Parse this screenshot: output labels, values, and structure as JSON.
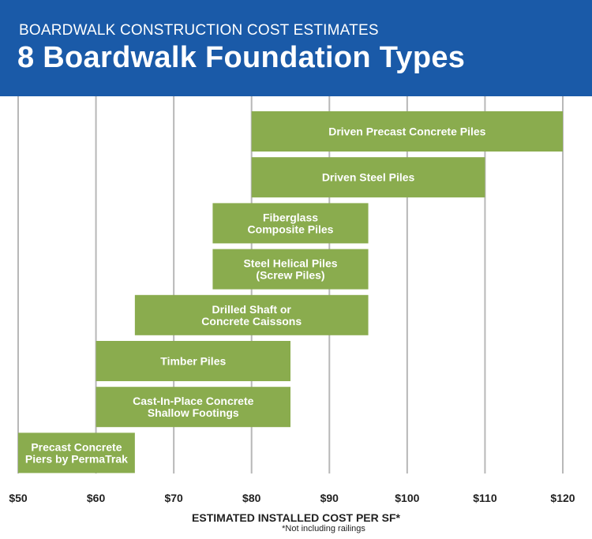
{
  "header": {
    "subtitle": "BOARDWALK CONSTRUCTION COST ESTIMATES",
    "title": "8 Boardwalk Foundation Types"
  },
  "colors": {
    "header_bg": "#1a5aa8",
    "bar": "#8aac4e",
    "grid": "#b8b8b8"
  },
  "footnote": "*Not including railings",
  "chart_data": {
    "type": "bar",
    "orientation": "horizontal-range",
    "title": "8 Boardwalk Foundation Types",
    "xlabel": "ESTIMATED INSTALLED COST PER SF*",
    "ylabel": "",
    "xlim": [
      50,
      120
    ],
    "xticks": [
      50,
      60,
      70,
      80,
      90,
      100,
      110,
      120
    ],
    "tick_labels": [
      "$50",
      "$60",
      "$70",
      "$80",
      "$90",
      "$100",
      "$110",
      "$120"
    ],
    "grid": true,
    "series": [
      {
        "lines": [
          "Driven Precast Concrete Piles"
        ],
        "low": 80,
        "high": 120
      },
      {
        "lines": [
          "Driven Steel Piles"
        ],
        "low": 80,
        "high": 110
      },
      {
        "lines": [
          "Fiberglass",
          "Composite Piles"
        ],
        "low": 75,
        "high": 95
      },
      {
        "lines": [
          "Steel Helical Piles",
          "(Screw Piles)"
        ],
        "low": 75,
        "high": 95
      },
      {
        "lines": [
          "Drilled Shaft or",
          "Concrete Caissons"
        ],
        "low": 65,
        "high": 95
      },
      {
        "lines": [
          "Timber Piles"
        ],
        "low": 60,
        "high": 85
      },
      {
        "lines": [
          "Cast-In-Place Concrete",
          "Shallow Footings"
        ],
        "low": 60,
        "high": 85
      },
      {
        "lines": [
          "Precast Concrete",
          "Piers by PermaTrak"
        ],
        "low": 50,
        "high": 65
      }
    ]
  }
}
